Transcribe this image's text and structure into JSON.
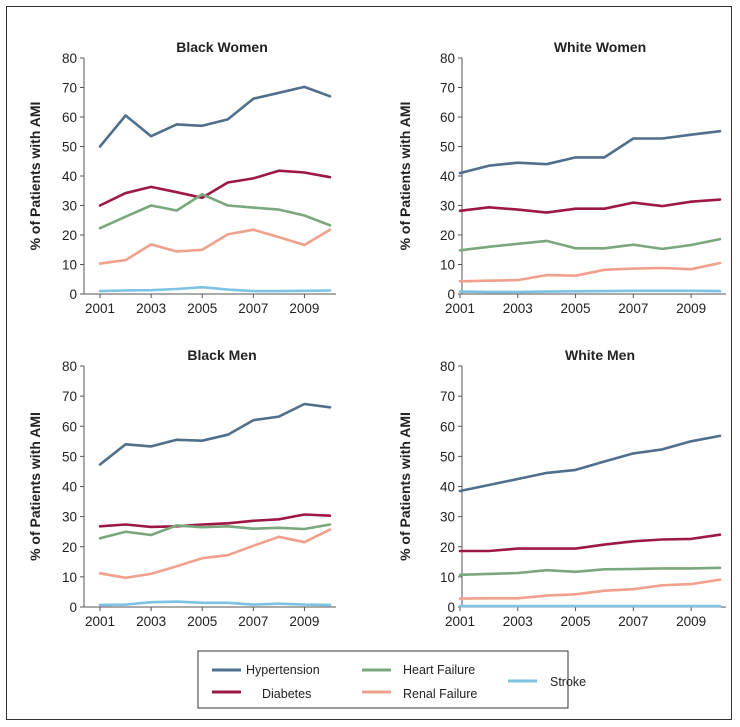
{
  "chart_data": [
    {
      "type": "line",
      "title": "Black Women",
      "ylabel": "% of Patients with AMI",
      "x": [
        2001,
        2002,
        2003,
        2004,
        2005,
        2006,
        2007,
        2008,
        2009,
        2010
      ],
      "xticks": [
        "2001",
        "2003",
        "2005",
        "2007",
        "2009"
      ],
      "yticks": [
        "0",
        "10",
        "20",
        "30",
        "40",
        "50",
        "60",
        "70",
        "80"
      ],
      "ylim": [
        0,
        80
      ],
      "series": [
        {
          "name": "Hypertension",
          "values": [
            50,
            60.5,
            53.5,
            57.5,
            57,
            59.2,
            66.2,
            68.2,
            70.2,
            67
          ]
        },
        {
          "name": "Diabetes",
          "values": [
            30,
            34.2,
            36.3,
            34.5,
            32.6,
            37.8,
            39.2,
            41.8,
            41.2,
            39.6
          ]
        },
        {
          "name": "Heart Failure",
          "values": [
            22.3,
            26.2,
            30,
            28.3,
            33.8,
            30,
            29.3,
            28.6,
            26.6,
            23.3
          ]
        },
        {
          "name": "Renal Failure",
          "values": [
            10.3,
            11.5,
            16.8,
            14.4,
            15,
            20.2,
            21.8,
            19.3,
            16.6,
            21.8
          ]
        },
        {
          "name": "Stroke",
          "values": [
            1,
            1.2,
            1.3,
            1.7,
            2.3,
            1.5,
            1,
            1,
            1.1,
            1.2
          ]
        }
      ]
    },
    {
      "type": "line",
      "title": "White Women",
      "ylabel": "% of Patients with AMI",
      "x": [
        2001,
        2002,
        2003,
        2004,
        2005,
        2006,
        2007,
        2008,
        2009,
        2010
      ],
      "xticks": [
        "2001",
        "2003",
        "2005",
        "2007",
        "2009"
      ],
      "yticks": [
        "0",
        "10",
        "20",
        "30",
        "40",
        "50",
        "60",
        "70",
        "80"
      ],
      "ylim": [
        0,
        80
      ],
      "series": [
        {
          "name": "Hypertension",
          "values": [
            41,
            43.5,
            44.5,
            44,
            46.3,
            46.3,
            52.7,
            52.7,
            54,
            55.2
          ]
        },
        {
          "name": "Diabetes",
          "values": [
            28.2,
            29.4,
            28.6,
            27.6,
            28.9,
            28.9,
            31,
            29.8,
            31.3,
            32
          ]
        },
        {
          "name": "Heart Failure",
          "values": [
            14.8,
            16,
            17,
            18,
            15.5,
            15.5,
            16.7,
            15.3,
            16.6,
            18.6
          ]
        },
        {
          "name": "Renal Failure",
          "values": [
            4.3,
            4.5,
            4.7,
            6.4,
            6.2,
            8.2,
            8.6,
            8.8,
            8.4,
            10.5
          ]
        },
        {
          "name": "Stroke",
          "values": [
            0.8,
            0.7,
            0.7,
            0.8,
            0.9,
            1,
            1.1,
            1.1,
            1.1,
            1
          ]
        }
      ]
    },
    {
      "type": "line",
      "title": "Black Men",
      "ylabel": "% of Patients with AMI",
      "x": [
        2001,
        2002,
        2003,
        2004,
        2005,
        2006,
        2007,
        2008,
        2009,
        2010
      ],
      "xticks": [
        "2001",
        "2003",
        "2005",
        "2007",
        "2009"
      ],
      "yticks": [
        "0",
        "10",
        "20",
        "30",
        "40",
        "50",
        "60",
        "70",
        "80"
      ],
      "ylim": [
        0,
        80
      ],
      "series": [
        {
          "name": "Hypertension",
          "values": [
            47.3,
            54,
            53.3,
            55.5,
            55.2,
            57.2,
            62,
            63.2,
            67.4,
            66.3
          ]
        },
        {
          "name": "Diabetes",
          "values": [
            26.8,
            27.4,
            26.6,
            26.8,
            27.4,
            27.8,
            28.6,
            29.1,
            30.7,
            30.3
          ]
        },
        {
          "name": "Heart Failure",
          "values": [
            22.8,
            25,
            23.9,
            27.1,
            26.5,
            26.8,
            26,
            26.3,
            25.9,
            27.4
          ]
        },
        {
          "name": "Renal Failure",
          "values": [
            11.2,
            9.7,
            11,
            13.5,
            16.2,
            17.2,
            20.3,
            23.3,
            21.5,
            25.7
          ]
        },
        {
          "name": "Stroke",
          "values": [
            0.7,
            0.8,
            1.6,
            1.8,
            1.4,
            1.4,
            0.8,
            1.1,
            0.8,
            0.7
          ]
        }
      ]
    },
    {
      "type": "line",
      "title": "White Men",
      "ylabel": "% of Patients with AMI",
      "x": [
        2001,
        2002,
        2003,
        2004,
        2005,
        2006,
        2007,
        2008,
        2009,
        2010
      ],
      "xticks": [
        "2001",
        "2003",
        "2005",
        "2007",
        "2009"
      ],
      "yticks": [
        "0",
        "10",
        "20",
        "30",
        "40",
        "50",
        "60",
        "70",
        "80"
      ],
      "ylim": [
        0,
        80
      ],
      "series": [
        {
          "name": "Hypertension",
          "values": [
            38.5,
            40.5,
            42.5,
            44.5,
            45.5,
            48.3,
            51,
            52.3,
            55,
            56.8
          ]
        },
        {
          "name": "Diabetes",
          "values": [
            18.6,
            18.6,
            19.4,
            19.4,
            19.4,
            20.7,
            21.8,
            22.4,
            22.6,
            24
          ]
        },
        {
          "name": "Heart Failure",
          "values": [
            10.7,
            11,
            11.3,
            12.2,
            11.7,
            12.5,
            12.6,
            12.8,
            12.8,
            13
          ]
        },
        {
          "name": "Renal Failure",
          "values": [
            2.8,
            2.9,
            2.9,
            3.8,
            4.2,
            5.4,
            5.9,
            7.2,
            7.6,
            9.1
          ]
        },
        {
          "name": "Stroke",
          "values": [
            0.3,
            0.3,
            0.3,
            0.3,
            0.3,
            0.3,
            0.3,
            0.3,
            0.3,
            0.3
          ]
        }
      ]
    }
  ],
  "legend": [
    {
      "name": "Hypertension",
      "color": "#4f6f8c"
    },
    {
      "name": "Heart Failure",
      "color": "#7aa77b"
    },
    {
      "name": "Stroke",
      "color": "#7dc3e3"
    },
    {
      "name": "Diabetes",
      "color": "#9e1845"
    },
    {
      "name": "Renal Failure",
      "color": "#f0a08c"
    }
  ],
  "colors": {
    "Hypertension": "#4f6f8c",
    "Diabetes": "#9e1845",
    "Heart Failure": "#7aa77b",
    "Renal Failure": "#f0a08c",
    "Stroke": "#7dc3e3"
  }
}
